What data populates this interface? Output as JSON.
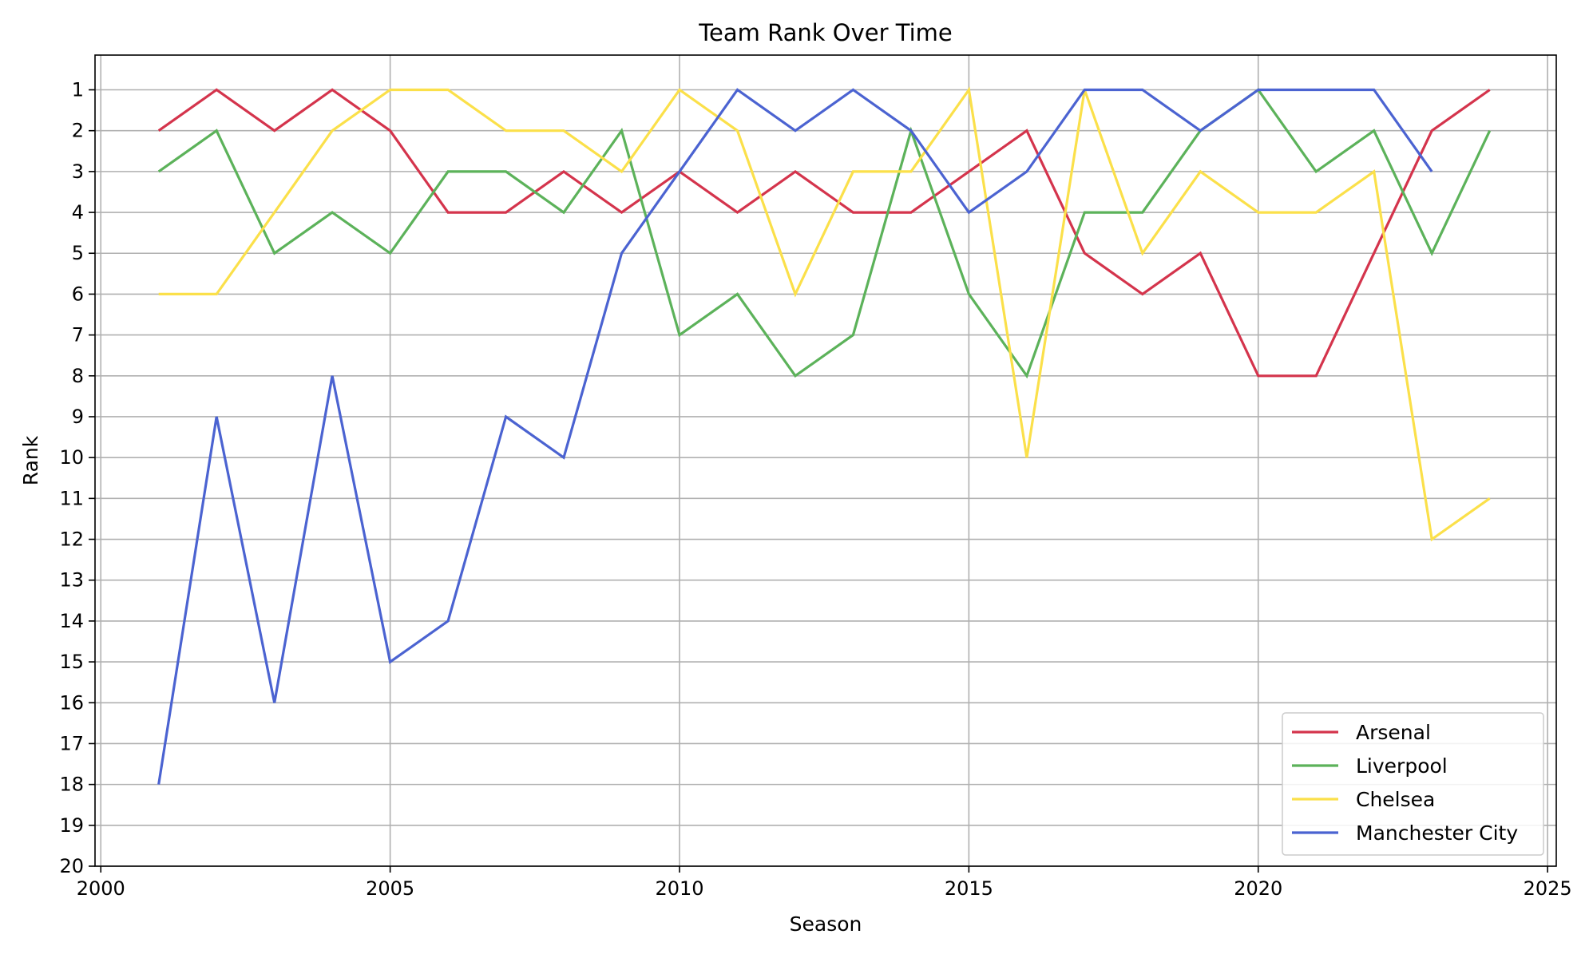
{
  "chart_data": {
    "type": "line",
    "title": "Team Rank Over Time",
    "xlabel": "Season",
    "ylabel": "Rank",
    "xlim": [
      2000,
      2025
    ],
    "ylim": [
      1,
      20
    ],
    "y_inverted": true,
    "x_ticks": [
      2000,
      2005,
      2010,
      2015,
      2020,
      2025
    ],
    "y_ticks": [
      1,
      2,
      3,
      4,
      5,
      6,
      7,
      8,
      9,
      10,
      11,
      12,
      13,
      14,
      15,
      16,
      17,
      18,
      19,
      20
    ],
    "grid": true,
    "legend_position": "bottom-right",
    "series": [
      {
        "name": "Arsenal",
        "color": "#d4344c",
        "x": [
          2001,
          2002,
          2003,
          2004,
          2005,
          2006,
          2007,
          2008,
          2009,
          2010,
          2011,
          2012,
          2013,
          2014,
          2015,
          2016,
          2017,
          2018,
          2019,
          2020,
          2021,
          2022,
          2023,
          2024
        ],
        "values": [
          2,
          1,
          2,
          1,
          2,
          4,
          4,
          3,
          4,
          3,
          4,
          3,
          4,
          4,
          3,
          2,
          5,
          6,
          5,
          8,
          8,
          5,
          2,
          1
        ]
      },
      {
        "name": "Liverpool",
        "color": "#5cb25a",
        "x": [
          2001,
          2002,
          2003,
          2004,
          2005,
          2006,
          2007,
          2008,
          2009,
          2010,
          2011,
          2012,
          2013,
          2014,
          2015,
          2016,
          2017,
          2018,
          2019,
          2020,
          2021,
          2022,
          2023,
          2024
        ],
        "values": [
          3,
          2,
          5,
          4,
          5,
          3,
          3,
          4,
          2,
          7,
          6,
          8,
          7,
          2,
          6,
          8,
          4,
          4,
          2,
          1,
          3,
          2,
          5,
          2
        ]
      },
      {
        "name": "Chelsea",
        "color": "#fbe04a",
        "x": [
          2001,
          2002,
          2003,
          2004,
          2005,
          2006,
          2007,
          2008,
          2009,
          2010,
          2011,
          2012,
          2013,
          2014,
          2015,
          2016,
          2017,
          2018,
          2019,
          2020,
          2021,
          2022,
          2023,
          2024
        ],
        "values": [
          6,
          6,
          4,
          2,
          1,
          1,
          2,
          2,
          3,
          1,
          2,
          6,
          3,
          3,
          1,
          10,
          1,
          5,
          3,
          4,
          4,
          3,
          12,
          11
        ]
      },
      {
        "name": "Manchester City",
        "color": "#4b63d1",
        "x": [
          2001,
          2002,
          2003,
          2004,
          2005,
          2006,
          2007,
          2008,
          2009,
          2010,
          2011,
          2012,
          2013,
          2014,
          2015,
          2016,
          2017,
          2018,
          2019,
          2020,
          2021,
          2022,
          2023
        ],
        "values": [
          18,
          9,
          16,
          8,
          15,
          14,
          9,
          10,
          5,
          3,
          1,
          2,
          1,
          2,
          4,
          3,
          1,
          1,
          2,
          1,
          1,
          1,
          3
        ]
      }
    ]
  }
}
